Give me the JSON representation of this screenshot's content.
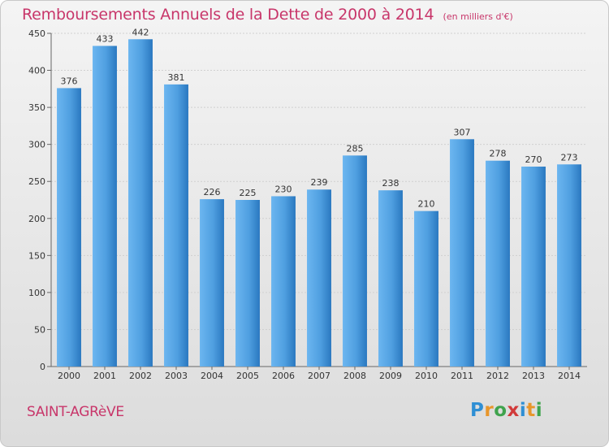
{
  "header": {
    "title": "Remboursements Annuels de la Dette de 2000 à 2014",
    "subtitle": "(en milliers d'€)"
  },
  "footer": {
    "commune": "SAINT-AGRèVE",
    "logo": {
      "letters": [
        "P",
        "r",
        "o",
        "x",
        "i",
        "t",
        "i"
      ],
      "colors": [
        "#2f8fd4",
        "#e8962a",
        "#3fa34d",
        "#d13a3a",
        "#2f8fd4",
        "#e8962a",
        "#3fa34d"
      ]
    }
  },
  "colors": {
    "bar": "#4f9fe0",
    "bar_light": "#6cb6f0",
    "bar_dark": "#2a78c0",
    "title": "#c8366a",
    "grid": "#d0d0d0"
  },
  "chart_data": {
    "type": "bar",
    "title": "Remboursements Annuels de la Dette de 2000 à 2014",
    "subtitle": "(en milliers d'€)",
    "categories": [
      "2000",
      "2001",
      "2002",
      "2003",
      "2004",
      "2005",
      "2006",
      "2007",
      "2008",
      "2009",
      "2010",
      "2011",
      "2012",
      "2013",
      "2014"
    ],
    "values": [
      376,
      433,
      442,
      381,
      226,
      225,
      230,
      239,
      285,
      238,
      210,
      307,
      278,
      270,
      273
    ],
    "ylim": [
      0,
      450
    ],
    "yticks": [
      0,
      50,
      100,
      150,
      200,
      250,
      300,
      350,
      400,
      450
    ],
    "grid": true,
    "data_labels": true
  }
}
